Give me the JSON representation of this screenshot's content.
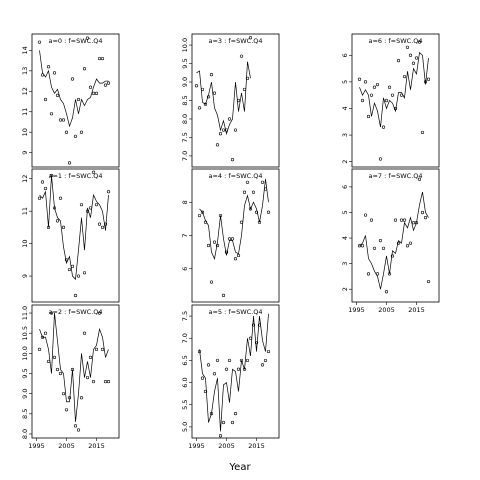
{
  "figure": {
    "xlabel": "Year"
  },
  "chart_data": [
    {
      "type": "line",
      "title": "a=0  :  f=SWC.Q4",
      "xlim": [
        1993.5,
        2022.5
      ],
      "ylim": [
        8.3,
        14.8
      ],
      "yticks": [
        9,
        10,
        11,
        12,
        13,
        14
      ],
      "ytick_labels": [
        "9",
        "10",
        "11",
        "12",
        "13",
        "14"
      ],
      "xticks": [
        1995,
        2005,
        2015
      ],
      "xtick_labels": [
        "1995",
        "2005",
        "2015"
      ],
      "show_xticks": false,
      "series": [
        {
          "kind": "line",
          "x": [
            1996,
            1997,
            1998,
            1999,
            2000,
            2001,
            2002,
            2003,
            2004,
            2005,
            2006,
            2007,
            2008,
            2009,
            2010,
            2011,
            2012,
            2013,
            2014,
            2015,
            2016,
            2017,
            2018,
            2019
          ],
          "y": [
            14.0,
            12.9,
            12.7,
            13.0,
            12.2,
            11.9,
            12.1,
            11.6,
            11.4,
            10.9,
            10.3,
            10.7,
            11.6,
            10.9,
            11.6,
            11.3,
            11.6,
            11.7,
            12.2,
            12.6,
            12.4,
            12.4,
            12.5,
            12.5
          ]
        },
        {
          "kind": "points",
          "x": [
            1996,
            1997,
            1998,
            1999,
            2000,
            2001,
            2002,
            2003,
            2004,
            2005,
            2006,
            2007,
            2008,
            2009,
            2010,
            2011,
            2012,
            2013,
            2014,
            2015,
            2016,
            2017,
            2018,
            2019
          ],
          "y": [
            14.4,
            12.8,
            11.6,
            13.2,
            10.9,
            12.9,
            11.8,
            10.6,
            10.6,
            10.0,
            8.5,
            12.6,
            9.8,
            11.6,
            10.0,
            13.1,
            14.6,
            12.2,
            11.9,
            11.9,
            13.6,
            13.6,
            12.3,
            12.4
          ]
        }
      ]
    },
    {
      "type": "line",
      "title": "a=3  :  f=SWC.Q4",
      "xlim": [
        1993.5,
        2022.5
      ],
      "ylim": [
        6.7,
        10.3
      ],
      "yticks": [
        7.0,
        7.5,
        8.0,
        8.5,
        9.0,
        9.5,
        10.0
      ],
      "ytick_labels": [
        "7.0",
        "7.5",
        "8.0",
        "8.5",
        "9.0",
        "9.5",
        "10.0"
      ],
      "xticks": [
        1995,
        2005,
        2015
      ],
      "xtick_labels": [
        "1995",
        "2005",
        "2015"
      ],
      "show_xticks": false,
      "series": [
        {
          "kind": "line",
          "x": [
            1995,
            1996,
            1997,
            1998,
            1999,
            2000,
            2001,
            2002,
            2003,
            2004,
            2005,
            2006,
            2007,
            2008,
            2009,
            2010,
            2011,
            2012,
            2013
          ],
          "y": [
            9.25,
            9.3,
            8.45,
            8.4,
            8.65,
            9.0,
            8.3,
            8.1,
            7.7,
            7.95,
            7.6,
            7.85,
            8.0,
            9.0,
            8.2,
            8.7,
            8.2,
            9.55,
            9.1
          ],
          "scale_x": 0.67
        },
        {
          "kind": "points",
          "x": [
            1995,
            1996,
            1997,
            1998,
            1999,
            2000,
            2001,
            2002,
            2003,
            2004,
            2005,
            2006,
            2007,
            2008,
            2009,
            2010,
            2011,
            2012,
            2013
          ],
          "y": [
            8.9,
            8.3,
            8.8,
            8.4,
            8.6,
            9.2,
            8.7,
            7.3,
            7.6,
            7.7,
            7.7,
            8.0,
            6.9,
            7.7,
            8.5,
            9.7,
            8.8,
            9.1,
            10.2
          ]
        }
      ]
    },
    {
      "type": "line",
      "title": "a=6  :  f=SWC.Q4",
      "xlim": [
        1993.5,
        2022.5
      ],
      "ylim": [
        1.8,
        6.8
      ],
      "yticks": [
        2,
        3,
        4,
        5,
        6
      ],
      "ytick_labels": [
        "2",
        "3",
        "4",
        "5",
        "6"
      ],
      "xticks": [
        1995,
        2005,
        2015
      ],
      "xtick_labels": [
        "1995",
        "2005",
        "2015"
      ],
      "show_xticks": false,
      "series": [
        {
          "kind": "line",
          "x": [
            1996,
            1997,
            1998,
            1999,
            2000,
            2001,
            2002,
            2003,
            2004,
            2005,
            2006,
            2007,
            2008,
            2009,
            2010,
            2011,
            2012,
            2013,
            2014,
            2015,
            2016,
            2017,
            2018,
            2019
          ],
          "y": [
            4.8,
            4.5,
            4.7,
            4.5,
            3.7,
            4.2,
            3.9,
            3.3,
            4.4,
            4.0,
            4.3,
            4.2,
            3.9,
            4.6,
            4.6,
            4.4,
            5.4,
            4.7,
            5.5,
            5.3,
            6.1,
            6.0,
            4.9,
            5.9
          ]
        },
        {
          "kind": "points",
          "x": [
            1996,
            1997,
            1998,
            1999,
            2000,
            2001,
            2002,
            2003,
            2004,
            2005,
            2006,
            2007,
            2008,
            2009,
            2010,
            2011,
            2012,
            2013,
            2014,
            2015,
            2016,
            2017,
            2018,
            2019
          ],
          "y": [
            5.1,
            4.3,
            5.0,
            3.7,
            4.5,
            4.8,
            4.9,
            2.1,
            3.3,
            4.3,
            4.8,
            4.5,
            4.0,
            5.8,
            4.5,
            5.2,
            6.3,
            6.0,
            5.7,
            5.9,
            6.5,
            3.1,
            5.0,
            5.1
          ]
        }
      ]
    },
    {
      "type": "line",
      "title": "a=1  :  f=SWC.Q4",
      "xlim": [
        1993.5,
        2022.5
      ],
      "ylim": [
        8.2,
        12.3
      ],
      "yticks": [
        9,
        10,
        11,
        12
      ],
      "ytick_labels": [
        "9",
        "10",
        "11",
        "12"
      ],
      "xticks": [
        1995,
        2005,
        2015
      ],
      "xtick_labels": [
        "1995",
        "2005",
        "2015"
      ],
      "show_xticks": false,
      "series": [
        {
          "kind": "line",
          "x": [
            1996,
            1997,
            1998,
            1999,
            2000,
            2001,
            2002,
            2003,
            2004,
            2005,
            2006,
            2007,
            2008,
            2009,
            2010,
            2011,
            2012,
            2013,
            2014,
            2015,
            2016,
            2017,
            2018,
            2019
          ],
          "y": [
            11.5,
            11.4,
            11.6,
            10.5,
            12.1,
            11.1,
            10.8,
            10.7,
            9.9,
            9.4,
            9.6,
            9.0,
            8.9,
            9.8,
            10.8,
            9.8,
            11.1,
            10.8,
            11.5,
            11.3,
            11.2,
            11.0,
            10.4,
            11.5
          ]
        },
        {
          "kind": "points",
          "x": [
            1996,
            1997,
            1998,
            1999,
            2000,
            2001,
            2002,
            2003,
            2004,
            2005,
            2006,
            2007,
            2008,
            2009,
            2010,
            2011,
            2012,
            2013,
            2014,
            2015,
            2016,
            2017,
            2018,
            2019
          ],
          "y": [
            11.4,
            11.9,
            11.7,
            10.5,
            12.1,
            11.1,
            10.7,
            11.4,
            10.5,
            9.5,
            9.2,
            9.3,
            8.4,
            9.0,
            11.2,
            9.1,
            11.0,
            11.1,
            12.2,
            11.2,
            10.6,
            10.5,
            10.6,
            11.6
          ]
        }
      ]
    },
    {
      "type": "line",
      "title": "a=4  :  f=SWC.Q4",
      "xlim": [
        1993.5,
        2022.5
      ],
      "ylim": [
        5.0,
        9.0
      ],
      "yticks": [
        6,
        7,
        8
      ],
      "ytick_labels": [
        "6",
        "7",
        "8"
      ],
      "xticks": [
        1995,
        2005,
        2015
      ],
      "xtick_labels": [
        "1995",
        "2005",
        "2015"
      ],
      "show_xticks": false,
      "series": [
        {
          "kind": "line",
          "x": [
            1996,
            1997,
            1998,
            1999,
            2000,
            2001,
            2002,
            2003,
            2004,
            2005,
            2006,
            2007,
            2008,
            2009,
            2010,
            2011,
            2012,
            2013,
            2014,
            2015,
            2016,
            2017,
            2018,
            2019
          ],
          "y": [
            7.8,
            7.7,
            7.45,
            7.3,
            6.5,
            6.3,
            6.8,
            7.6,
            6.9,
            6.4,
            6.85,
            6.85,
            6.5,
            6.45,
            7.0,
            7.9,
            8.2,
            7.8,
            8.0,
            7.8,
            7.4,
            7.9,
            8.7,
            8.0
          ]
        },
        {
          "kind": "points",
          "x": [
            1996,
            1997,
            1998,
            1999,
            2000,
            2001,
            2002,
            2003,
            2004,
            2005,
            2006,
            2007,
            2008,
            2009,
            2010,
            2011,
            2012,
            2013,
            2014,
            2015,
            2016,
            2017,
            2018,
            2019
          ],
          "y": [
            7.6,
            7.7,
            7.4,
            6.7,
            5.6,
            6.8,
            6.7,
            7.6,
            5.2,
            6.5,
            6.9,
            6.9,
            6.3,
            6.4,
            7.4,
            8.3,
            8.6,
            7.8,
            8.3,
            7.7,
            7.4,
            8.6,
            8.4,
            7.7
          ]
        }
      ]
    },
    {
      "type": "line",
      "title": "a=7  :  f=SWC.Q4",
      "xlim": [
        1993.5,
        2022.5
      ],
      "ylim": [
        1.5,
        6.7
      ],
      "yticks": [
        2,
        3,
        4,
        5,
        6
      ],
      "ytick_labels": [
        "2",
        "3",
        "4",
        "5",
        "6"
      ],
      "xticks": [
        1995,
        2005,
        2015
      ],
      "xtick_labels": [
        "1995",
        "2005",
        "2015"
      ],
      "show_xticks": true,
      "series": [
        {
          "kind": "line",
          "x": [
            1996,
            1997,
            1998,
            1999,
            2000,
            2001,
            2002,
            2003,
            2004,
            2005,
            2006,
            2007,
            2008,
            2009,
            2010,
            2011,
            2012,
            2013,
            2014,
            2015,
            2016,
            2017,
            2018,
            2019
          ],
          "y": [
            3.7,
            3.8,
            4.1,
            3.2,
            3.0,
            2.7,
            2.5,
            2.0,
            2.6,
            3.3,
            2.6,
            3.5,
            3.4,
            3.9,
            3.8,
            4.6,
            4.4,
            4.8,
            4.3,
            4.6,
            5.3,
            5.8,
            5.0,
            4.8
          ]
        },
        {
          "kind": "points",
          "x": [
            1996,
            1997,
            1998,
            1999,
            2000,
            2001,
            2002,
            2003,
            2004,
            2005,
            2006,
            2007,
            2008,
            2009,
            2010,
            2011,
            2012,
            2013,
            2014,
            2015,
            2016,
            2017,
            2018,
            2019
          ],
          "y": [
            3.7,
            3.7,
            4.9,
            2.6,
            4.7,
            3.6,
            2.6,
            3.9,
            3.6,
            1.9,
            2.6,
            3.3,
            4.7,
            3.8,
            4.7,
            4.7,
            3.7,
            3.8,
            4.6,
            4.6,
            6.3,
            5.0,
            4.8,
            2.3
          ]
        }
      ]
    },
    {
      "type": "line",
      "title": "a=2  :  f=SWC.Q4",
      "xlim": [
        1993.5,
        2022.5
      ],
      "ylim": [
        7.9,
        11.2
      ],
      "yticks": [
        8.0,
        8.5,
        9.0,
        9.5,
        10.0,
        10.5,
        11.0
      ],
      "ytick_labels": [
        "8.0",
        "8.5",
        "9.0",
        "9.5",
        "10.0",
        "10.5",
        "11.0"
      ],
      "xticks": [
        1995,
        2005,
        2015
      ],
      "xtick_labels": [
        "1995",
        "2005",
        "2015"
      ],
      "show_xticks": true,
      "series": [
        {
          "kind": "line",
          "x": [
            1996,
            1997,
            1998,
            1999,
            2000,
            2001,
            2002,
            2003,
            2004,
            2005,
            2006,
            2007,
            2008,
            2009,
            2010,
            2011,
            2012,
            2013,
            2014,
            2015,
            2016,
            2017,
            2018,
            2019
          ],
          "y": [
            10.6,
            10.4,
            10.4,
            10.1,
            9.5,
            11.0,
            10.3,
            9.6,
            9.5,
            8.8,
            8.8,
            9.6,
            8.3,
            9.0,
            10.0,
            9.4,
            9.8,
            9.4,
            10.1,
            10.2,
            10.6,
            10.4,
            9.9,
            10.1
          ]
        },
        {
          "kind": "points",
          "x": [
            1996,
            1997,
            1998,
            1999,
            2000,
            2001,
            2002,
            2003,
            2004,
            2005,
            2006,
            2007,
            2008,
            2009,
            2010,
            2011,
            2012,
            2013,
            2014,
            2015,
            2016,
            2017,
            2018,
            2019
          ],
          "y": [
            10.1,
            10.4,
            10.5,
            9.8,
            11.0,
            9.9,
            9.6,
            9.5,
            9.0,
            8.6,
            8.9,
            9.6,
            8.2,
            8.1,
            8.9,
            10.5,
            9.4,
            9.9,
            9.3,
            10.1,
            11.0,
            10.1,
            9.3,
            9.3
          ]
        }
      ]
    },
    {
      "type": "line",
      "title": "a=5  :  f=SWC.Q4",
      "xlim": [
        1993.5,
        2022.5
      ],
      "ylim": [
        4.75,
        7.75
      ],
      "yticks": [
        5.0,
        5.5,
        6.0,
        6.5,
        7.0,
        7.5
      ],
      "ytick_labels": [
        "5.0",
        "5.5",
        "6.0",
        "6.5",
        "7.0",
        "7.5"
      ],
      "xticks": [
        1995,
        2005,
        2015
      ],
      "xtick_labels": [
        "1995",
        "2005",
        "2015"
      ],
      "show_xticks": true,
      "series": [
        {
          "kind": "line",
          "x": [
            1996,
            1997,
            1998,
            1999,
            2000,
            2001,
            2002,
            2003,
            2004,
            2005,
            2006,
            2007,
            2008,
            2009,
            2010,
            2011,
            2012,
            2013,
            2014,
            2015,
            2016,
            2017,
            2018,
            2019
          ],
          "y": [
            6.75,
            6.2,
            6.1,
            5.1,
            5.3,
            5.8,
            6.1,
            4.9,
            5.95,
            6.0,
            5.55,
            6.3,
            6.25,
            5.8,
            6.5,
            6.3,
            7.0,
            6.6,
            7.5,
            6.7,
            7.5,
            6.95,
            6.7,
            7.55
          ]
        },
        {
          "kind": "points",
          "x": [
            1996,
            1997,
            1998,
            1999,
            2000,
            2001,
            2002,
            2003,
            2004,
            2005,
            2006,
            2007,
            2008,
            2009,
            2010,
            2011,
            2012,
            2013,
            2014,
            2015,
            2016,
            2017,
            2018,
            2019
          ],
          "y": [
            6.7,
            6.1,
            5.8,
            6.4,
            5.3,
            6.2,
            6.5,
            4.8,
            5.1,
            6.3,
            6.5,
            5.1,
            5.3,
            6.3,
            6.5,
            6.3,
            6.5,
            7.0,
            7.3,
            6.9,
            7.3,
            6.4,
            6.5,
            6.7
          ]
        }
      ]
    }
  ]
}
